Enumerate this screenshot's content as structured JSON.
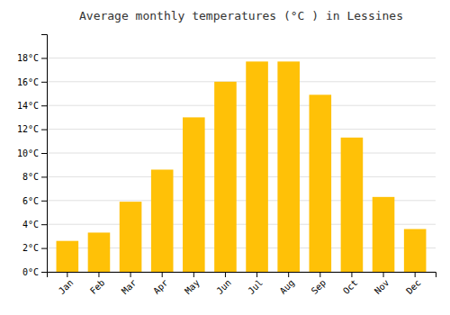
{
  "chart_data": {
    "type": "bar",
    "title": "Average monthly temperatures (°C ) in Lessines",
    "categories": [
      "Jan",
      "Feb",
      "Mar",
      "Apr",
      "May",
      "Jun",
      "Jul",
      "Aug",
      "Sep",
      "Oct",
      "Nov",
      "Dec"
    ],
    "values": [
      2.6,
      3.3,
      5.9,
      8.6,
      13.0,
      16.0,
      17.7,
      17.7,
      14.9,
      11.3,
      6.3,
      3.6
    ],
    "color": "#FFC107",
    "ylim": [
      0,
      20
    ],
    "yticks": [
      {
        "value": 0,
        "label": "0°C"
      },
      {
        "value": 2,
        "label": "2°C"
      },
      {
        "value": 4,
        "label": "4°C"
      },
      {
        "value": 6,
        "label": "6°C"
      },
      {
        "value": 8,
        "label": "8°C"
      },
      {
        "value": 10,
        "label": "10°C"
      },
      {
        "value": 12,
        "label": "12°C"
      },
      {
        "value": 14,
        "label": "14°C"
      },
      {
        "value": 16,
        "label": "16°C"
      },
      {
        "value": 18,
        "label": "18°C"
      }
    ],
    "grid": true
  }
}
